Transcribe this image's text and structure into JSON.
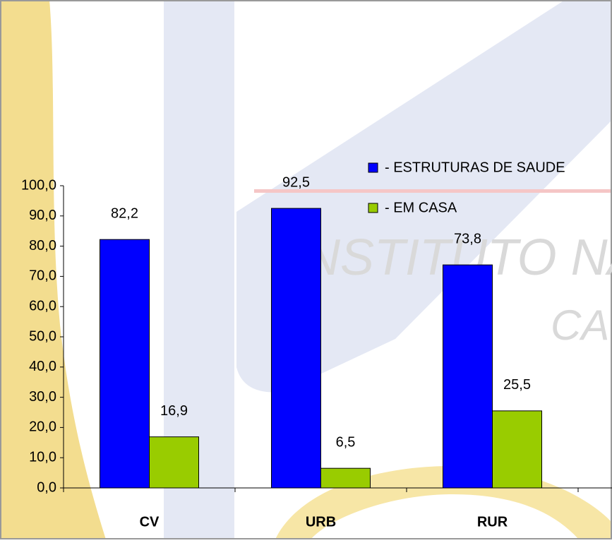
{
  "chart_data": {
    "type": "bar",
    "categories": [
      "CV",
      "URB",
      "RUR"
    ],
    "series": [
      {
        "name": "- ESTRUTURAS DE SAUDE",
        "color": "#0000ff",
        "values": [
          82.2,
          92.5,
          73.8
        ],
        "value_labels": [
          "82,2",
          "92,5",
          "73,8"
        ]
      },
      {
        "name": "- EM CASA",
        "color": "#99cc00",
        "values": [
          16.9,
          6.5,
          25.5
        ],
        "value_labels": [
          "16,9",
          "6,5",
          "25,5"
        ]
      }
    ],
    "ylim": [
      0,
      100
    ],
    "yticks": [
      {
        "value": 0,
        "label": "0,0"
      },
      {
        "value": 10,
        "label": "10,0"
      },
      {
        "value": 20,
        "label": "20,0"
      },
      {
        "value": 30,
        "label": "30,0"
      },
      {
        "value": 40,
        "label": "40,0"
      },
      {
        "value": 50,
        "label": "50,0"
      },
      {
        "value": 60,
        "label": "60,0"
      },
      {
        "value": 70,
        "label": "70,0"
      },
      {
        "value": 80,
        "label": "80,0"
      },
      {
        "value": 90,
        "label": "90,0"
      },
      {
        "value": 100,
        "label": "100,0"
      }
    ],
    "grid": false,
    "legend": "top-right",
    "watermark": [
      "NSTITUTO NA",
      "CA"
    ]
  }
}
